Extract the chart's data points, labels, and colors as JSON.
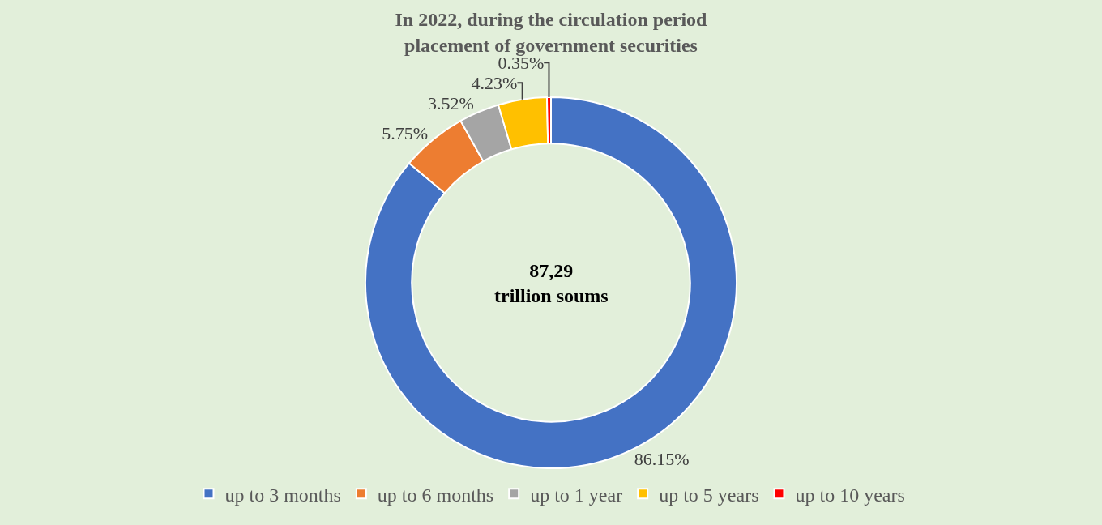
{
  "chart_data": {
    "type": "donut",
    "title": "In 2022, during the circulation period\nplacement of government securities",
    "categories": [
      "up to 3 months",
      "up to 6 months",
      "up to 1 year",
      "up to 5 years",
      "up to 10 years"
    ],
    "values": [
      86.15,
      5.75,
      3.52,
      4.23,
      0.35
    ],
    "value_labels": [
      "86.15%",
      "5.75%",
      "3.52%",
      "4.23%",
      "0.35%"
    ],
    "colors": [
      "#4472c4",
      "#ed7d31",
      "#a5a5a5",
      "#ffc000",
      "#ff0000"
    ],
    "annotations": [
      "87,29\ntrillion soums"
    ],
    "legend": "bottom"
  }
}
